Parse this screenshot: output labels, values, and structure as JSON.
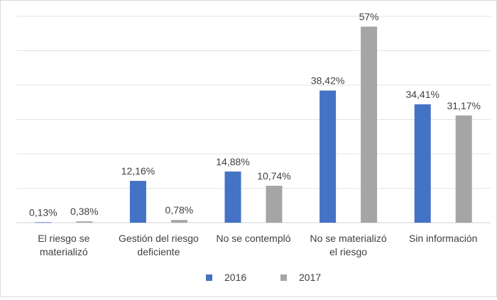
{
  "chart_data": {
    "type": "bar",
    "title": "",
    "xlabel": "",
    "ylabel": "",
    "ylim": [
      0,
      60
    ],
    "grid": true,
    "legend_position": "bottom",
    "categories": [
      [
        "El riesgo se",
        "materializó"
      ],
      [
        "Gestión del riesgo",
        "deficiente"
      ],
      [
        "No se contempló"
      ],
      [
        "No se materializó",
        "el riesgo"
      ],
      [
        "Sin información"
      ]
    ],
    "series": [
      {
        "name": "2016",
        "color": "#4472C4",
        "values": [
          0.13,
          12.16,
          14.88,
          38.42,
          34.41
        ],
        "labels": [
          "0,13%",
          "12,16%",
          "14,88%",
          "38,42%",
          "34,41%"
        ]
      },
      {
        "name": "2017",
        "color": "#A5A5A5",
        "values": [
          0.38,
          0.78,
          10.74,
          57,
          31.17
        ],
        "labels": [
          "0,38%",
          "0,78%",
          "10,74%",
          "57%",
          "31,17%"
        ]
      }
    ]
  }
}
